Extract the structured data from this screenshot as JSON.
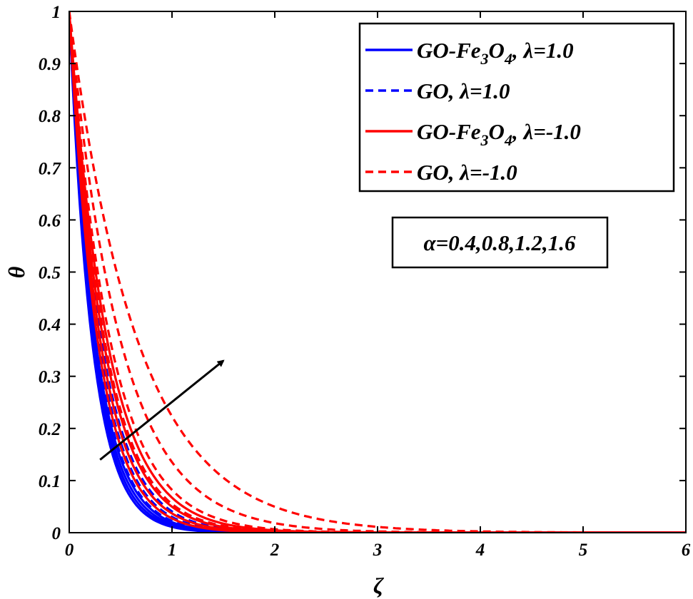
{
  "chart_data": {
    "type": "line",
    "xlabel": "ζ",
    "ylabel": "θ",
    "xlim": [
      0,
      6
    ],
    "ylim": [
      0,
      1
    ],
    "xticks": [
      "0",
      "1",
      "2",
      "3",
      "4",
      "5",
      "6"
    ],
    "yticks": [
      "0",
      "0.1",
      "0.2",
      "0.3",
      "0.4",
      "0.5",
      "0.6",
      "0.7",
      "0.8",
      "0.9",
      "1"
    ],
    "legend": {
      "placement": "top-right",
      "entries": [
        {
          "parts": [
            [
              "GO-Fe",
              ""
            ],
            [
              "3",
              "sub"
            ],
            [
              "O",
              ""
            ],
            [
              "4",
              "sub"
            ],
            [
              ", λ=1.0",
              ""
            ]
          ],
          "color": "#0000ff",
          "dash": "solid"
        },
        {
          "parts": [
            [
              "GO, λ=1.0",
              ""
            ]
          ],
          "color": "#0000ff",
          "dash": "dashed"
        },
        {
          "parts": [
            [
              "GO-Fe",
              ""
            ],
            [
              "3",
              "sub"
            ],
            [
              "O",
              ""
            ],
            [
              "4",
              "sub"
            ],
            [
              ", λ=-1.0",
              ""
            ]
          ],
          "color": "#ff0000",
          "dash": "solid"
        },
        {
          "parts": [
            [
              "GO, λ=-1.0",
              ""
            ]
          ],
          "color": "#ff0000",
          "dash": "dashed"
        }
      ]
    },
    "annotation": {
      "text": "α=0.4,0.8,1.2,1.6",
      "arrow_from": [
        0.3,
        0.14
      ],
      "arrow_to": [
        1.5,
        0.33
      ]
    },
    "series": [
      {
        "group": "GO-Fe3O4, λ=1.0",
        "alpha": 0.4,
        "color": "#0000ff",
        "dash": "solid",
        "decay": 4.5
      },
      {
        "group": "GO-Fe3O4, λ=1.0",
        "alpha": 0.8,
        "color": "#0000ff",
        "dash": "solid",
        "decay": 4.3
      },
      {
        "group": "GO-Fe3O4, λ=1.0",
        "alpha": 1.2,
        "color": "#0000ff",
        "dash": "solid",
        "decay": 4.1
      },
      {
        "group": "GO-Fe3O4, λ=1.0",
        "alpha": 1.6,
        "color": "#0000ff",
        "dash": "solid",
        "decay": 3.9
      },
      {
        "group": "GO, λ=1.0",
        "alpha": 0.4,
        "color": "#0000ff",
        "dash": "dashed",
        "decay": 3.8
      },
      {
        "group": "GO, λ=1.0",
        "alpha": 0.8,
        "color": "#0000ff",
        "dash": "dashed",
        "decay": 3.5
      },
      {
        "group": "GO, λ=1.0",
        "alpha": 1.2,
        "color": "#0000ff",
        "dash": "dashed",
        "decay": 3.2
      },
      {
        "group": "GO, λ=1.0",
        "alpha": 1.6,
        "color": "#0000ff",
        "dash": "dashed",
        "decay": 2.9
      },
      {
        "group": "GO-Fe3O4, λ=-1.0",
        "alpha": 0.4,
        "color": "#ff0000",
        "dash": "solid",
        "decay": 3.6
      },
      {
        "group": "GO-Fe3O4, λ=-1.0",
        "alpha": 0.8,
        "color": "#ff0000",
        "dash": "solid",
        "decay": 3.3
      },
      {
        "group": "GO-Fe3O4, λ=-1.0",
        "alpha": 1.2,
        "color": "#ff0000",
        "dash": "solid",
        "decay": 3.0
      },
      {
        "group": "GO-Fe3O4, λ=-1.0",
        "alpha": 1.6,
        "color": "#ff0000",
        "dash": "solid",
        "decay": 2.7
      },
      {
        "group": "GO, λ=-1.0",
        "alpha": 0.4,
        "color": "#ff0000",
        "dash": "dashed",
        "decay": 2.9
      },
      {
        "group": "GO, λ=-1.0",
        "alpha": 0.8,
        "color": "#ff0000",
        "dash": "dashed",
        "decay": 2.5
      },
      {
        "group": "GO, λ=-1.0",
        "alpha": 1.2,
        "color": "#ff0000",
        "dash": "dashed",
        "decay": 2.0
      },
      {
        "group": "GO, λ=-1.0",
        "alpha": 1.6,
        "color": "#ff0000",
        "dash": "dashed",
        "decay": 1.5
      }
    ]
  }
}
